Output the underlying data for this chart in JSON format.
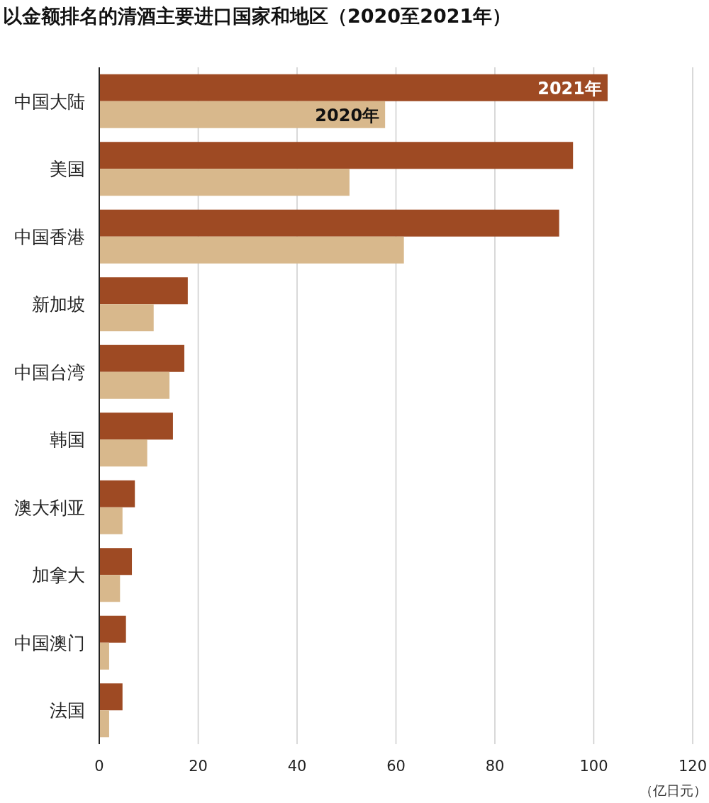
{
  "chart_data": {
    "type": "bar",
    "orientation": "horizontal",
    "title": "以金额排名的清酒主要进口国家和地区（2020至2021年）",
    "xlabel": "（亿日元）",
    "categories": [
      "中国大陆",
      "美国",
      "中国香港",
      "新加坡",
      "中国台湾",
      "韩国",
      "澳大利亚",
      "加拿大",
      "中国澳门",
      "法国"
    ],
    "series": [
      {
        "name": "2021年",
        "color": "#9e4a23",
        "values": [
          102.8,
          95.8,
          93.0,
          17.9,
          17.2,
          14.9,
          7.2,
          6.6,
          5.4,
          4.7
        ]
      },
      {
        "name": "2020年",
        "color": "#d8b88c",
        "values": [
          57.8,
          50.6,
          61.6,
          11.0,
          14.2,
          9.7,
          4.7,
          4.2,
          2.0,
          2.0
        ]
      }
    ],
    "xlim": [
      0,
      120
    ],
    "xticks": [
      0,
      20,
      40,
      60,
      80,
      100,
      120
    ],
    "grid": "x"
  }
}
